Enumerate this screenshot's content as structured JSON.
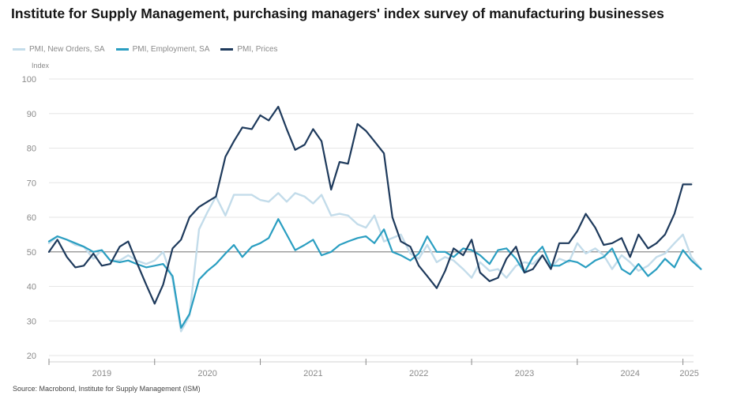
{
  "chart_data": {
    "type": "line",
    "title": "Institute for Supply Management, purchasing managers' index survey of manufacturing businesses",
    "ylabel": "Index",
    "ylim": [
      20,
      100
    ],
    "yticks": [
      20,
      30,
      40,
      50,
      60,
      70,
      80,
      90,
      100
    ],
    "xlim": [
      2019.0,
      2025.1
    ],
    "year_labels": [
      "2019",
      "2020",
      "2021",
      "2022",
      "2023",
      "2024",
      "2025"
    ],
    "reference_line": 50,
    "grid": true,
    "legend_position": "top-left",
    "series": [
      {
        "name": "PMI, New Orders, SA",
        "color": "#c3dcea",
        "points": [
          [
            2019.0,
            52.5
          ],
          [
            2019.08,
            54.5
          ],
          [
            2019.17,
            53.5
          ],
          [
            2019.25,
            52
          ],
          [
            2019.33,
            51.5
          ],
          [
            2019.42,
            48
          ],
          [
            2019.5,
            50.5
          ],
          [
            2019.58,
            47.5
          ],
          [
            2019.67,
            47.5
          ],
          [
            2019.75,
            49
          ],
          [
            2019.83,
            47.5
          ],
          [
            2019.92,
            46.5
          ],
          [
            2020.0,
            47.5
          ],
          [
            2020.08,
            50
          ],
          [
            2020.17,
            42
          ],
          [
            2020.25,
            27
          ],
          [
            2020.33,
            31.5
          ],
          [
            2020.42,
            56.5
          ],
          [
            2020.5,
            61.5
          ],
          [
            2020.58,
            66
          ],
          [
            2020.67,
            60.5
          ],
          [
            2020.75,
            66.5
          ],
          [
            2020.83,
            66.5
          ],
          [
            2020.92,
            66.5
          ],
          [
            2021.0,
            65
          ],
          [
            2021.08,
            64.5
          ],
          [
            2021.17,
            67
          ],
          [
            2021.25,
            64.5
          ],
          [
            2021.33,
            67
          ],
          [
            2021.42,
            66
          ],
          [
            2021.5,
            64
          ],
          [
            2021.58,
            66.5
          ],
          [
            2021.67,
            60.5
          ],
          [
            2021.75,
            61
          ],
          [
            2021.83,
            60.5
          ],
          [
            2021.92,
            58
          ],
          [
            2022.0,
            57
          ],
          [
            2022.08,
            60.5
          ],
          [
            2022.17,
            53
          ],
          [
            2022.25,
            54
          ],
          [
            2022.33,
            55
          ],
          [
            2022.42,
            49.5
          ],
          [
            2022.5,
            48
          ],
          [
            2022.58,
            52
          ],
          [
            2022.67,
            47
          ],
          [
            2022.75,
            48.5
          ],
          [
            2022.83,
            47.5
          ],
          [
            2022.92,
            45
          ],
          [
            2023.0,
            42.5
          ],
          [
            2023.08,
            47
          ],
          [
            2023.17,
            44.5
          ],
          [
            2023.25,
            45
          ],
          [
            2023.33,
            42.5
          ],
          [
            2023.42,
            46
          ],
          [
            2023.5,
            47
          ],
          [
            2023.58,
            46.5
          ],
          [
            2023.67,
            49
          ],
          [
            2023.75,
            45.5
          ],
          [
            2023.83,
            48
          ],
          [
            2023.92,
            47
          ],
          [
            2024.0,
            52.5
          ],
          [
            2024.08,
            49.5
          ],
          [
            2024.17,
            51
          ],
          [
            2024.25,
            49
          ],
          [
            2024.33,
            45
          ],
          [
            2024.42,
            49
          ],
          [
            2024.5,
            47
          ],
          [
            2024.58,
            44.5
          ],
          [
            2024.67,
            46
          ],
          [
            2024.75,
            48.5
          ],
          [
            2024.83,
            49.5
          ],
          [
            2024.92,
            52.5
          ],
          [
            2025.0,
            55
          ],
          [
            2025.08,
            48.5
          ],
          [
            2025.17,
            45
          ]
        ]
      },
      {
        "name": "PMI, Employment, SA",
        "color": "#2a9ec1",
        "points": [
          [
            2019.0,
            53
          ],
          [
            2019.08,
            54.5
          ],
          [
            2019.17,
            53.5
          ],
          [
            2019.25,
            52.5
          ],
          [
            2019.33,
            51.5
          ],
          [
            2019.42,
            50
          ],
          [
            2019.5,
            50.5
          ],
          [
            2019.58,
            47.5
          ],
          [
            2019.67,
            47
          ],
          [
            2019.75,
            47.5
          ],
          [
            2019.83,
            46.5
          ],
          [
            2019.92,
            45.5
          ],
          [
            2020.0,
            46
          ],
          [
            2020.08,
            46.5
          ],
          [
            2020.17,
            43
          ],
          [
            2020.25,
            28
          ],
          [
            2020.33,
            32
          ],
          [
            2020.42,
            42
          ],
          [
            2020.5,
            44.5
          ],
          [
            2020.58,
            46.5
          ],
          [
            2020.67,
            49.5
          ],
          [
            2020.75,
            52
          ],
          [
            2020.83,
            48.5
          ],
          [
            2020.92,
            51.5
          ],
          [
            2021.0,
            52.5
          ],
          [
            2021.08,
            54
          ],
          [
            2021.17,
            59.5
          ],
          [
            2021.25,
            55
          ],
          [
            2021.33,
            50.5
          ],
          [
            2021.42,
            52
          ],
          [
            2021.5,
            53.5
          ],
          [
            2021.58,
            49
          ],
          [
            2021.67,
            50
          ],
          [
            2021.75,
            52
          ],
          [
            2021.83,
            53
          ],
          [
            2021.92,
            54
          ],
          [
            2022.0,
            54.5
          ],
          [
            2022.08,
            52.5
          ],
          [
            2022.17,
            56.5
          ],
          [
            2022.25,
            50
          ],
          [
            2022.33,
            49
          ],
          [
            2022.42,
            47.5
          ],
          [
            2022.5,
            49.5
          ],
          [
            2022.58,
            54.5
          ],
          [
            2022.67,
            50
          ],
          [
            2022.75,
            50
          ],
          [
            2022.83,
            48.5
          ],
          [
            2022.92,
            51
          ],
          [
            2023.0,
            50.5
          ],
          [
            2023.08,
            49
          ],
          [
            2023.17,
            46.5
          ],
          [
            2023.25,
            50.5
          ],
          [
            2023.33,
            51
          ],
          [
            2023.42,
            48
          ],
          [
            2023.5,
            44
          ],
          [
            2023.58,
            48.5
          ],
          [
            2023.67,
            51.5
          ],
          [
            2023.75,
            46
          ],
          [
            2023.83,
            46
          ],
          [
            2023.92,
            47.5
          ],
          [
            2024.0,
            47
          ],
          [
            2024.08,
            45.5
          ],
          [
            2024.17,
            47.5
          ],
          [
            2024.25,
            48.5
          ],
          [
            2024.33,
            51
          ],
          [
            2024.42,
            45
          ],
          [
            2024.5,
            43.5
          ],
          [
            2024.58,
            46.5
          ],
          [
            2024.67,
            43
          ],
          [
            2024.75,
            45
          ],
          [
            2024.83,
            48
          ],
          [
            2024.92,
            45.5
          ],
          [
            2025.0,
            50.5
          ],
          [
            2025.08,
            47.5
          ],
          [
            2025.17,
            45
          ]
        ]
      },
      {
        "name": "PMI, Prices",
        "color": "#1e3a5c",
        "points": [
          [
            2019.0,
            50
          ],
          [
            2019.08,
            53.5
          ],
          [
            2019.17,
            48.5
          ],
          [
            2019.25,
            45.5
          ],
          [
            2019.33,
            46
          ],
          [
            2019.42,
            49.5
          ],
          [
            2019.5,
            46
          ],
          [
            2019.58,
            46.5
          ],
          [
            2019.67,
            51.5
          ],
          [
            2019.75,
            53
          ],
          [
            2019.83,
            47
          ],
          [
            2019.92,
            40.5
          ],
          [
            2020.0,
            35
          ],
          [
            2020.08,
            40.5
          ],
          [
            2020.17,
            51
          ],
          [
            2020.25,
            53.5
          ],
          [
            2020.33,
            60
          ],
          [
            2020.42,
            63
          ],
          [
            2020.5,
            64.5
          ],
          [
            2020.58,
            66
          ],
          [
            2020.67,
            77.5
          ],
          [
            2020.75,
            82
          ],
          [
            2020.83,
            86
          ],
          [
            2020.92,
            85.5
          ],
          [
            2021.0,
            89.5
          ],
          [
            2021.08,
            88
          ],
          [
            2021.17,
            92
          ],
          [
            2021.25,
            85.5
          ],
          [
            2021.33,
            79.5
          ],
          [
            2021.42,
            81
          ],
          [
            2021.5,
            85.5
          ],
          [
            2021.58,
            82
          ],
          [
            2021.67,
            68
          ],
          [
            2021.75,
            76
          ],
          [
            2021.83,
            75.5
          ],
          [
            2021.92,
            87
          ],
          [
            2022.0,
            85
          ],
          [
            2022.08,
            82
          ],
          [
            2022.17,
            78.5
          ],
          [
            2022.25,
            60
          ],
          [
            2022.33,
            53
          ],
          [
            2022.42,
            51.5
          ],
          [
            2022.5,
            46
          ],
          [
            2022.58,
            43
          ],
          [
            2022.67,
            39.5
          ],
          [
            2022.75,
            44.5
          ],
          [
            2022.83,
            51
          ],
          [
            2022.92,
            49
          ],
          [
            2023.0,
            53.5
          ],
          [
            2023.08,
            44
          ],
          [
            2023.17,
            41.5
          ],
          [
            2023.25,
            42.5
          ],
          [
            2023.33,
            48
          ],
          [
            2023.42,
            51.5
          ],
          [
            2023.5,
            44
          ],
          [
            2023.58,
            45
          ],
          [
            2023.67,
            49
          ],
          [
            2023.75,
            45
          ],
          [
            2023.83,
            52.5
          ],
          [
            2023.92,
            52.5
          ],
          [
            2024.0,
            56
          ],
          [
            2024.08,
            61
          ],
          [
            2024.17,
            57
          ],
          [
            2024.25,
            52
          ],
          [
            2024.33,
            52.5
          ],
          [
            2024.42,
            54
          ],
          [
            2024.5,
            48.5
          ],
          [
            2024.58,
            55
          ],
          [
            2024.67,
            51
          ],
          [
            2024.75,
            52.5
          ],
          [
            2024.83,
            55
          ],
          [
            2024.92,
            61
          ],
          [
            2025.0,
            69.5
          ],
          [
            2025.08,
            69.5
          ]
        ]
      }
    ],
    "source": "Source: Macrobond, Institute for Supply Management (ISM)"
  }
}
